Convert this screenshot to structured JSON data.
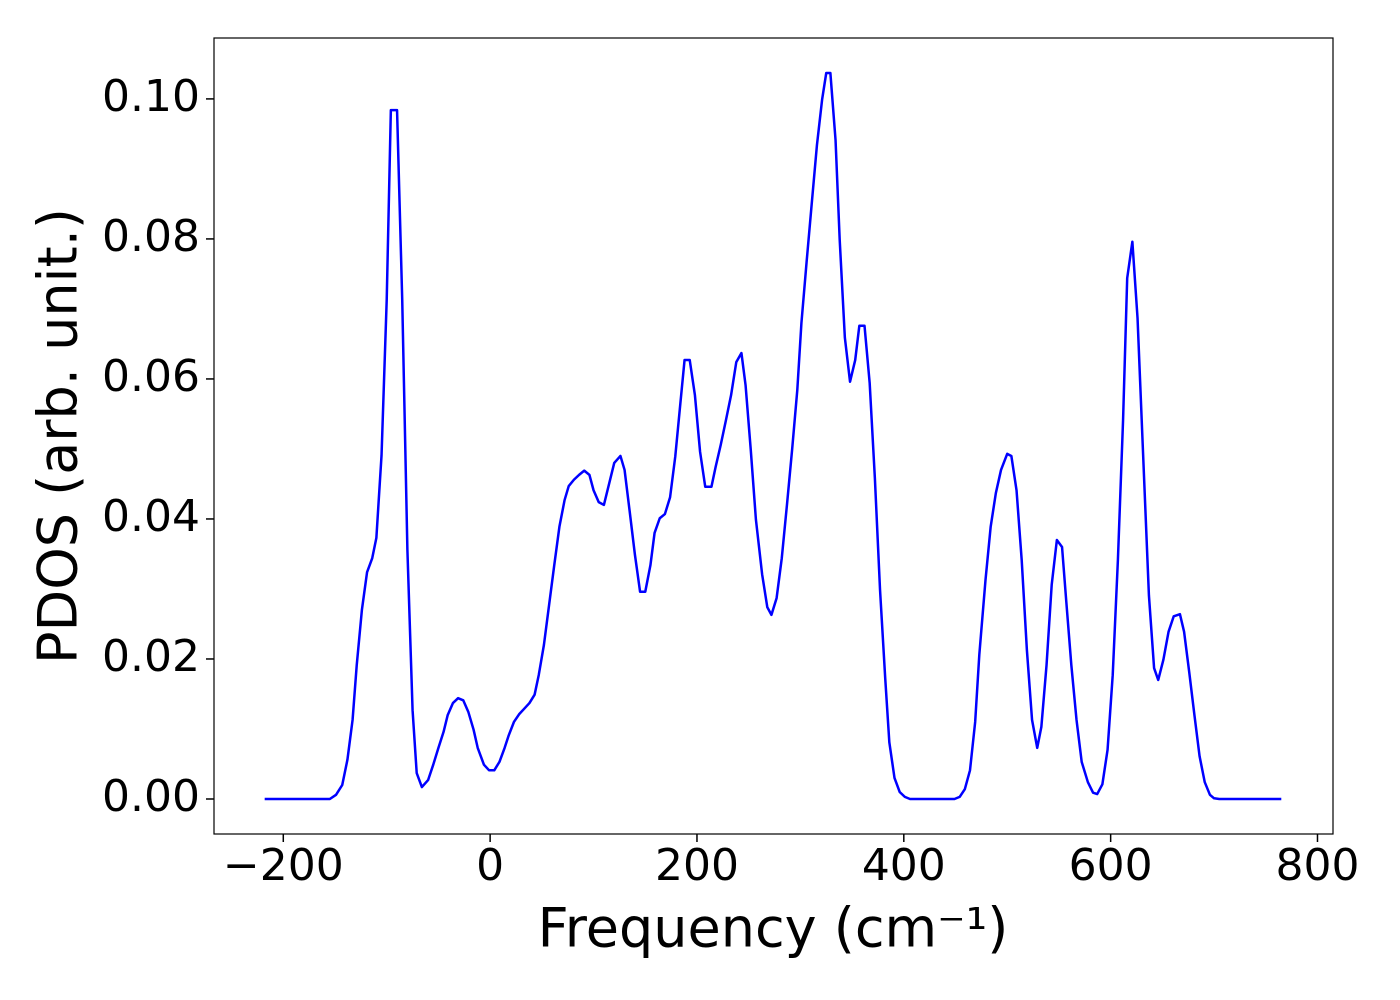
{
  "chart_data": {
    "type": "line",
    "xlabel": "Frequency (cm⁻¹)",
    "ylabel": "PDOS (arb. unit.)",
    "xlim": [
      -267,
      815
    ],
    "ylim": [
      -0.005,
      0.1087
    ],
    "xticks": [
      {
        "value": -200,
        "label": "−200"
      },
      0,
      200,
      400,
      600,
      800
    ],
    "yticks": [
      {
        "value": 0,
        "label": "0.00"
      },
      {
        "value": 0.02,
        "label": "0.02"
      },
      {
        "value": 0.04,
        "label": "0.04"
      },
      {
        "value": 0.06,
        "label": "0.06"
      },
      {
        "value": 0.08,
        "label": "0.08"
      },
      {
        "value": 0.1,
        "label": "0.10"
      }
    ],
    "grid": false,
    "series": [
      {
        "color": "#0000ff",
        "x": [
          -218,
          -155,
          -149,
          -143,
          -138,
          -133,
          -129,
          -124,
          -119,
          -114,
          -110,
          -105,
          -100,
          -96,
          -90,
          -85,
          -80,
          -75,
          -71,
          -66,
          -60,
          -55,
          -50,
          -45,
          -41,
          -36,
          -31,
          -26,
          -21,
          -16,
          -12,
          -6,
          -1,
          4,
          9,
          14,
          18,
          23,
          28,
          33,
          38,
          43,
          47,
          52,
          57,
          62,
          67,
          72,
          76,
          81,
          86,
          91,
          96,
          100,
          105,
          110,
          115,
          120,
          126,
          130,
          135,
          140,
          145,
          150,
          155,
          159,
          164,
          169,
          174,
          179,
          184,
          188,
          193,
          198,
          203,
          208,
          214,
          218,
          223,
          228,
          233,
          238,
          243,
          247,
          252,
          257,
          263,
          268,
          272,
          277,
          282,
          287,
          292,
          297,
          301,
          306,
          311,
          316,
          321,
          325,
          329,
          334,
          338,
          343,
          348,
          353,
          357,
          362,
          367,
          372,
          377,
          382,
          386,
          391,
          396,
          401,
          406,
          449,
          454,
          459,
          464,
          469,
          473,
          479,
          484,
          489,
          494,
          500,
          504,
          509,
          514,
          519,
          524,
          529,
          533,
          538,
          543,
          548,
          553,
          557,
          562,
          567,
          572,
          578,
          583,
          587,
          592,
          597,
          602,
          607,
          612,
          616,
          621,
          626,
          631,
          637,
          642,
          646,
          651,
          656,
          661,
          667,
          671,
          676,
          681,
          686,
          691,
          696,
          700,
          705,
          765
        ],
        "values": [
          0,
          0,
          0.0006,
          0.002,
          0.0056,
          0.0113,
          0.0191,
          0.027,
          0.0324,
          0.0344,
          0.0373,
          0.0491,
          0.0713,
          0.0984,
          0.0984,
          0.0713,
          0.0356,
          0.0127,
          0.0037,
          0.0017,
          0.0027,
          0.0049,
          0.0073,
          0.0096,
          0.012,
          0.0137,
          0.0144,
          0.0141,
          0.0124,
          0.0099,
          0.0073,
          0.0049,
          0.0041,
          0.0041,
          0.0053,
          0.0073,
          0.0091,
          0.011,
          0.0121,
          0.0129,
          0.0137,
          0.0149,
          0.0177,
          0.022,
          0.0277,
          0.0334,
          0.0389,
          0.0427,
          0.0447,
          0.0456,
          0.0463,
          0.0469,
          0.0463,
          0.0441,
          0.0424,
          0.042,
          0.045,
          0.048,
          0.049,
          0.047,
          0.041,
          0.0349,
          0.0296,
          0.0296,
          0.0334,
          0.038,
          0.0401,
          0.0407,
          0.0431,
          0.0489,
          0.0566,
          0.0627,
          0.0627,
          0.0577,
          0.0496,
          0.0446,
          0.0446,
          0.0474,
          0.0506,
          0.0541,
          0.0577,
          0.0624,
          0.0637,
          0.0591,
          0.0499,
          0.0399,
          0.0321,
          0.0274,
          0.0263,
          0.0287,
          0.0344,
          0.042,
          0.0499,
          0.0584,
          0.068,
          0.0767,
          0.0851,
          0.0934,
          0.0999,
          0.1037,
          0.1037,
          0.0941,
          0.0799,
          0.0659,
          0.0596,
          0.0627,
          0.0676,
          0.0676,
          0.0594,
          0.0459,
          0.0299,
          0.0173,
          0.0081,
          0.003,
          0.001,
          0.0003,
          0,
          0,
          0.0003,
          0.0014,
          0.0041,
          0.011,
          0.0206,
          0.0313,
          0.0389,
          0.0437,
          0.047,
          0.0493,
          0.049,
          0.0441,
          0.0341,
          0.0213,
          0.0113,
          0.0073,
          0.0103,
          0.0191,
          0.0306,
          0.037,
          0.036,
          0.0284,
          0.0191,
          0.0113,
          0.0053,
          0.0024,
          0.0009,
          0.0007,
          0.0021,
          0.007,
          0.0177,
          0.0341,
          0.0541,
          0.0744,
          0.0796,
          0.0687,
          0.0506,
          0.0291,
          0.0187,
          0.017,
          0.0199,
          0.0239,
          0.0261,
          0.0264,
          0.0239,
          0.0181,
          0.012,
          0.0061,
          0.0024,
          0.0006,
          0.0001,
          0,
          0
        ]
      }
    ]
  }
}
